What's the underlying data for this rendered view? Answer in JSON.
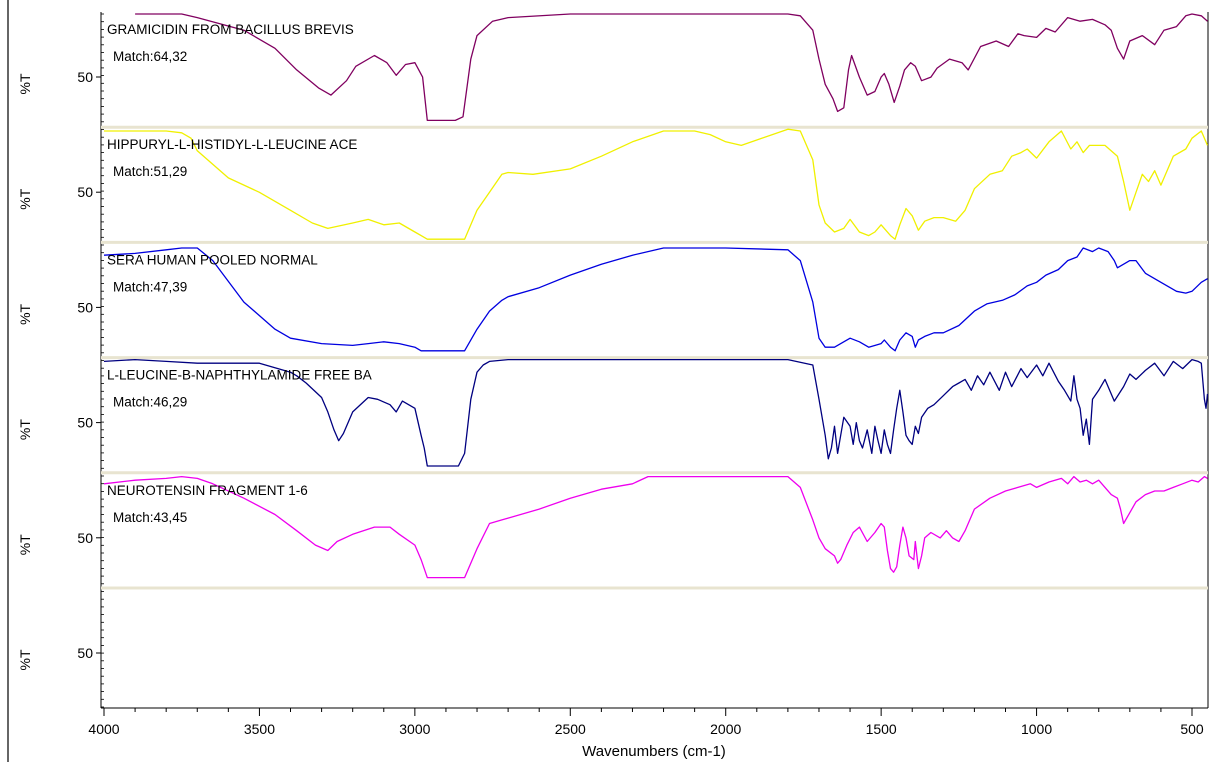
{
  "chart_data": {
    "type": "line",
    "xlabel": "Wavenumbers (cm-1)",
    "xlim": [
      4000,
      450
    ],
    "x_ticks": [
      "4000",
      "3500",
      "3000",
      "2500",
      "2000",
      "1500",
      "1000",
      "500"
    ],
    "panel_ylabel": "%T",
    "panel_ytick": "50",
    "grid": false,
    "series": [
      {
        "name": "GRAMICIDIN FROM BACILLUS BREVIS",
        "match": "Match:64,32",
        "color": "#800060",
        "x": [
          3900,
          3750,
          3700,
          3550,
          3450,
          3380,
          3310,
          3270,
          3220,
          3190,
          3130,
          3090,
          3060,
          3030,
          3000,
          2975,
          2960,
          2870,
          2845,
          2820,
          2800,
          2750,
          2700,
          2500,
          2000,
          1800,
          1760,
          1720,
          1700,
          1680,
          1655,
          1640,
          1620,
          1605,
          1595,
          1570,
          1545,
          1520,
          1500,
          1490,
          1475,
          1458,
          1440,
          1425,
          1405,
          1390,
          1370,
          1340,
          1320,
          1280,
          1240,
          1220,
          1180,
          1130,
          1090,
          1060,
          1040,
          1000,
          970,
          940,
          900,
          860,
          820,
          780,
          760,
          740,
          720,
          700,
          660,
          620,
          590,
          550,
          520,
          500,
          470,
          450
        ],
        "y": [
          97,
          97,
          95,
          88,
          78,
          66,
          56,
          52,
          60,
          68,
          74,
          70,
          63,
          69,
          70,
          62,
          38,
          38,
          40,
          72,
          85,
          93,
          95,
          97,
          97,
          97,
          96,
          88,
          72,
          58,
          50,
          43,
          45,
          66,
          74,
          62,
          52,
          54,
          62,
          64,
          58,
          48,
          57,
          66,
          70,
          68,
          60,
          62,
          67,
          72,
          70,
          66,
          79,
          82,
          79,
          86,
          85,
          84,
          89,
          87,
          95,
          93,
          94,
          91,
          88,
          78,
          72,
          82,
          85,
          80,
          88,
          90,
          96,
          97,
          96,
          93
        ]
      },
      {
        "name": "HIPPURYL-L-HISTIDYL-L-LEUCINE ACE",
        "match": "Match:51,29",
        "color": "#f0f000",
        "x": [
          4000,
          3800,
          3750,
          3720,
          3700,
          3600,
          3500,
          3400,
          3330,
          3280,
          3200,
          3150,
          3100,
          3050,
          3000,
          2980,
          2960,
          2900,
          2840,
          2800,
          2760,
          2720,
          2700,
          2620,
          2500,
          2400,
          2300,
          2200,
          2100,
          2050,
          2000,
          1950,
          1900,
          1800,
          1760,
          1720,
          1700,
          1680,
          1650,
          1620,
          1600,
          1570,
          1540,
          1520,
          1500,
          1470,
          1455,
          1440,
          1420,
          1400,
          1380,
          1360,
          1330,
          1300,
          1260,
          1230,
          1200,
          1150,
          1110,
          1080,
          1050,
          1030,
          1000,
          960,
          920,
          890,
          870,
          850,
          830,
          780,
          740,
          720,
          700,
          680,
          660,
          640,
          620,
          600,
          560,
          520,
          500,
          470,
          450
        ],
        "y": [
          96,
          96,
          95,
          92,
          85,
          70,
          62,
          52,
          45,
          42,
          45,
          47,
          44,
          45,
          40,
          38,
          36,
          36,
          36,
          52,
          62,
          72,
          73,
          72,
          75,
          82,
          90,
          96,
          96,
          94,
          90,
          88,
          91,
          97,
          96,
          80,
          55,
          45,
          40,
          42,
          47,
          40,
          38,
          40,
          44,
          38,
          36,
          44,
          53,
          49,
          41,
          46,
          48,
          48,
          46,
          52,
          64,
          72,
          74,
          82,
          84,
          86,
          81,
          90,
          96,
          86,
          90,
          84,
          88,
          88,
          82,
          68,
          52,
          62,
          72,
          68,
          74,
          66,
          82,
          86,
          92,
          96,
          88
        ]
      },
      {
        "name": "SERA HUMAN POOLED NORMAL",
        "match": "Match:47,39",
        "color": "#0000e0",
        "x": [
          4000,
          3900,
          3800,
          3750,
          3700,
          3650,
          3550,
          3450,
          3400,
          3300,
          3200,
          3150,
          3100,
          3050,
          3000,
          2980,
          2960,
          2900,
          2840,
          2800,
          2760,
          2720,
          2700,
          2600,
          2500,
          2400,
          2300,
          2200,
          2000,
          1800,
          1760,
          1720,
          1700,
          1680,
          1650,
          1620,
          1600,
          1570,
          1540,
          1500,
          1490,
          1470,
          1455,
          1440,
          1420,
          1400,
          1390,
          1380,
          1360,
          1330,
          1300,
          1250,
          1200,
          1160,
          1110,
          1070,
          1030,
          1000,
          970,
          930,
          900,
          870,
          850,
          820,
          800,
          770,
          750,
          740,
          720,
          700,
          680,
          650,
          600,
          550,
          520,
          500,
          470,
          450
        ],
        "y": [
          91,
          92,
          94,
          95,
          95,
          88,
          65,
          50,
          45,
          42,
          41,
          42,
          43,
          42,
          40,
          38,
          38,
          38,
          38,
          50,
          60,
          66,
          68,
          73,
          80,
          86,
          91,
          95,
          95,
          94,
          88,
          65,
          45,
          40,
          40,
          43,
          45,
          43,
          40,
          42,
          44,
          40,
          38,
          44,
          48,
          46,
          40,
          44,
          46,
          48,
          48,
          52,
          60,
          64,
          66,
          69,
          74,
          76,
          80,
          83,
          88,
          90,
          95,
          93,
          95,
          93,
          88,
          84,
          86,
          88,
          88,
          81,
          76,
          71,
          70,
          71,
          76,
          78
        ]
      },
      {
        "name": "L-LEUCINE-B-NAPHTHYLAMIDE FREE BA",
        "match": "Match:46,29",
        "color": "#000080",
        "x": [
          4000,
          3900,
          3800,
          3700,
          3500,
          3400,
          3380,
          3350,
          3300,
          3280,
          3260,
          3245,
          3230,
          3200,
          3150,
          3120,
          3080,
          3060,
          3040,
          3000,
          2980,
          2970,
          2960,
          2900,
          2860,
          2840,
          2820,
          2800,
          2780,
          2760,
          2700,
          2500,
          2300,
          2000,
          1800,
          1720,
          1700,
          1680,
          1670,
          1660,
          1650,
          1640,
          1630,
          1620,
          1600,
          1590,
          1580,
          1570,
          1560,
          1545,
          1530,
          1520,
          1510,
          1500,
          1490,
          1480,
          1470,
          1460,
          1450,
          1440,
          1430,
          1420,
          1410,
          1400,
          1390,
          1380,
          1370,
          1350,
          1330,
          1300,
          1270,
          1250,
          1230,
          1210,
          1190,
          1170,
          1150,
          1120,
          1100,
          1080,
          1050,
          1030,
          1000,
          980,
          960,
          930,
          910,
          890,
          880,
          870,
          860,
          850,
          840,
          830,
          820,
          800,
          780,
          750,
          720,
          700,
          680,
          650,
          620,
          590,
          560,
          530,
          500,
          480,
          470,
          460,
          455,
          450
        ],
        "y": [
          96,
          97,
          96,
          95,
          95,
          90,
          88,
          84,
          76,
          68,
          58,
          52,
          56,
          68,
          76,
          75,
          72,
          68,
          74,
          70,
          55,
          48,
          38,
          38,
          38,
          45,
          75,
          90,
          94,
          96,
          97,
          97,
          97,
          97,
          97,
          94,
          75,
          55,
          42,
          48,
          60,
          45,
          55,
          65,
          60,
          50,
          62,
          52,
          48,
          58,
          45,
          60,
          52,
          45,
          58,
          50,
          45,
          58,
          70,
          80,
          68,
          55,
          52,
          50,
          60,
          56,
          65,
          70,
          72,
          77,
          82,
          84,
          86,
          80,
          88,
          83,
          90,
          80,
          90,
          82,
          92,
          87,
          94,
          88,
          95,
          85,
          80,
          74,
          88,
          75,
          70,
          55,
          64,
          50,
          75,
          80,
          86,
          74,
          82,
          89,
          86,
          91,
          95,
          88,
          96,
          92,
          97,
          96,
          95,
          75,
          70,
          78
        ]
      },
      {
        "name": "NEUROTENSIN FRAGMENT 1-6",
        "match": "Match:43,45",
        "color": "#ee00ee",
        "x": [
          4000,
          3900,
          3800,
          3750,
          3700,
          3650,
          3550,
          3450,
          3380,
          3320,
          3280,
          3250,
          3200,
          3130,
          3080,
          3050,
          3000,
          2980,
          2960,
          2900,
          2840,
          2800,
          2760,
          2720,
          2700,
          2600,
          2500,
          2400,
          2300,
          2250,
          2000,
          1800,
          1760,
          1720,
          1700,
          1680,
          1650,
          1640,
          1630,
          1610,
          1590,
          1570,
          1545,
          1520,
          1500,
          1490,
          1480,
          1470,
          1460,
          1450,
          1440,
          1430,
          1420,
          1410,
          1395,
          1390,
          1380,
          1370,
          1360,
          1340,
          1310,
          1290,
          1270,
          1250,
          1230,
          1200,
          1150,
          1100,
          1060,
          1020,
          1000,
          960,
          920,
          900,
          880,
          860,
          840,
          820,
          800,
          780,
          760,
          740,
          730,
          720,
          700,
          680,
          650,
          620,
          590,
          560,
          530,
          500,
          480,
          460,
          450
        ],
        "y": [
          92,
          94,
          95,
          96,
          95,
          92,
          84,
          75,
          66,
          58,
          55,
          60,
          64,
          68,
          68,
          64,
          58,
          50,
          40,
          40,
          40,
          56,
          70,
          72,
          73,
          78,
          84,
          89,
          92,
          96,
          96,
          96,
          90,
          72,
          62,
          56,
          52,
          48,
          50,
          58,
          65,
          68,
          60,
          65,
          70,
          68,
          55,
          45,
          43,
          46,
          58,
          68,
          62,
          52,
          50,
          60,
          45,
          52,
          62,
          65,
          62,
          66,
          62,
          60,
          66,
          78,
          84,
          88,
          90,
          92,
          90,
          93,
          95,
          92,
          96,
          93,
          94,
          92,
          94,
          90,
          86,
          84,
          78,
          70,
          76,
          82,
          86,
          88,
          88,
          90,
          92,
          94,
          93,
          96,
          95
        ]
      }
    ]
  }
}
